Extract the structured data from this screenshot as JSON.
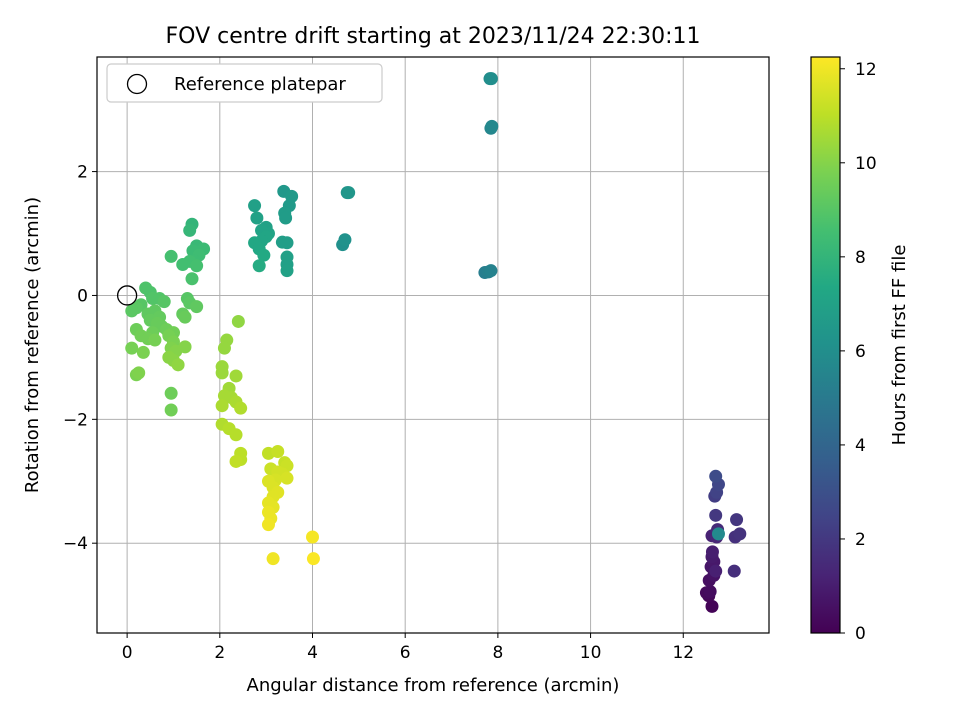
{
  "chart_data": {
    "type": "scatter",
    "title": "FOV centre drift starting at 2023/11/24 22:30:11",
    "xlabel": "Angular distance from reference (arcmin)",
    "ylabel": "Rotation from reference (arcmin)",
    "xlim": [
      -0.65,
      13.85
    ],
    "ylim": [
      -5.45,
      3.85
    ],
    "xticks": [
      0,
      2,
      4,
      6,
      8,
      10,
      12
    ],
    "yticks": [
      -4,
      -2,
      0,
      2
    ],
    "grid": true,
    "legend": {
      "position": "upper left",
      "entries": [
        "Reference platepar"
      ]
    },
    "reference_point": {
      "x": 0,
      "y": 0
    },
    "colorbar": {
      "label": "Hours from first FF file",
      "colormap": "viridis",
      "range": [
        0,
        12.25
      ],
      "ticks": [
        0,
        2,
        4,
        6,
        8,
        10,
        12
      ]
    },
    "points": [
      {
        "x": 12.62,
        "y": -5.02,
        "h": 0.1
      },
      {
        "x": 12.55,
        "y": -4.85,
        "h": 0.2
      },
      {
        "x": 12.5,
        "y": -4.8,
        "h": 0.3
      },
      {
        "x": 12.58,
        "y": -4.78,
        "h": 0.4
      },
      {
        "x": 12.56,
        "y": -4.6,
        "h": 0.5
      },
      {
        "x": 12.66,
        "y": -4.52,
        "h": 0.6
      },
      {
        "x": 12.6,
        "y": -4.38,
        "h": 0.7
      },
      {
        "x": 12.66,
        "y": -4.3,
        "h": 0.8
      },
      {
        "x": 12.62,
        "y": -4.22,
        "h": 0.9
      },
      {
        "x": 12.63,
        "y": -4.14,
        "h": 1.0
      },
      {
        "x": 12.7,
        "y": -4.45,
        "h": 1.1
      },
      {
        "x": 12.62,
        "y": -3.88,
        "h": 1.2
      },
      {
        "x": 12.72,
        "y": -3.9,
        "h": 1.3
      },
      {
        "x": 12.74,
        "y": -3.78,
        "h": 1.5
      },
      {
        "x": 13.1,
        "y": -4.45,
        "h": 1.6
      },
      {
        "x": 13.12,
        "y": -3.9,
        "h": 1.7
      },
      {
        "x": 13.22,
        "y": -3.85,
        "h": 1.8
      },
      {
        "x": 13.15,
        "y": -3.62,
        "h": 1.9
      },
      {
        "x": 12.7,
        "y": -3.55,
        "h": 2.0
      },
      {
        "x": 12.68,
        "y": -3.24,
        "h": 2.2
      },
      {
        "x": 12.72,
        "y": -3.18,
        "h": 2.4
      },
      {
        "x": 12.76,
        "y": -3.05,
        "h": 2.6
      },
      {
        "x": 12.7,
        "y": -2.92,
        "h": 2.8
      },
      {
        "x": 12.76,
        "y": -3.85,
        "h": 5.8
      },
      {
        "x": 7.72,
        "y": 0.37,
        "h": 5.2
      },
      {
        "x": 7.8,
        "y": 0.38,
        "h": 5.3
      },
      {
        "x": 7.85,
        "y": 0.4,
        "h": 5.4
      },
      {
        "x": 7.85,
        "y": 2.7,
        "h": 5.6
      },
      {
        "x": 7.87,
        "y": 2.73,
        "h": 5.7
      },
      {
        "x": 7.83,
        "y": 3.5,
        "h": 5.9
      },
      {
        "x": 7.86,
        "y": 3.5,
        "h": 6.0
      },
      {
        "x": 4.65,
        "y": 0.82,
        "h": 6.1
      },
      {
        "x": 4.7,
        "y": 0.9,
        "h": 6.2
      },
      {
        "x": 4.75,
        "y": 1.66,
        "h": 6.3
      },
      {
        "x": 4.78,
        "y": 1.66,
        "h": 6.4
      },
      {
        "x": 3.38,
        "y": 1.68,
        "h": 6.5
      },
      {
        "x": 3.55,
        "y": 1.6,
        "h": 6.6
      },
      {
        "x": 3.5,
        "y": 1.45,
        "h": 6.6
      },
      {
        "x": 3.4,
        "y": 1.33,
        "h": 6.7
      },
      {
        "x": 3.42,
        "y": 1.25,
        "h": 6.7
      },
      {
        "x": 3.35,
        "y": 0.86,
        "h": 6.8
      },
      {
        "x": 3.45,
        "y": 0.85,
        "h": 6.8
      },
      {
        "x": 3.45,
        "y": 0.62,
        "h": 6.9
      },
      {
        "x": 3.45,
        "y": 0.5,
        "h": 6.9
      },
      {
        "x": 3.45,
        "y": 0.4,
        "h": 7.0
      },
      {
        "x": 2.75,
        "y": 1.45,
        "h": 6.9
      },
      {
        "x": 2.8,
        "y": 1.25,
        "h": 7.0
      },
      {
        "x": 3.0,
        "y": 1.1,
        "h": 7.0
      },
      {
        "x": 3.05,
        "y": 1.0,
        "h": 7.1
      },
      {
        "x": 2.9,
        "y": 1.05,
        "h": 7.1
      },
      {
        "x": 3.0,
        "y": 0.95,
        "h": 7.2
      },
      {
        "x": 2.9,
        "y": 0.88,
        "h": 7.2
      },
      {
        "x": 2.75,
        "y": 0.85,
        "h": 7.3
      },
      {
        "x": 2.85,
        "y": 0.75,
        "h": 7.3
      },
      {
        "x": 2.95,
        "y": 0.65,
        "h": 7.4
      },
      {
        "x": 2.85,
        "y": 0.48,
        "h": 7.5
      },
      {
        "x": 1.4,
        "y": 1.15,
        "h": 8.0
      },
      {
        "x": 1.35,
        "y": 1.05,
        "h": 8.1
      },
      {
        "x": 1.5,
        "y": 0.8,
        "h": 8.2
      },
      {
        "x": 1.65,
        "y": 0.75,
        "h": 8.3
      },
      {
        "x": 1.42,
        "y": 0.72,
        "h": 8.3
      },
      {
        "x": 1.55,
        "y": 0.65,
        "h": 8.4
      },
      {
        "x": 1.45,
        "y": 0.55,
        "h": 8.4
      },
      {
        "x": 1.35,
        "y": 0.55,
        "h": 8.5
      },
      {
        "x": 1.2,
        "y": 0.5,
        "h": 8.5
      },
      {
        "x": 1.5,
        "y": 0.48,
        "h": 8.6
      },
      {
        "x": 0.95,
        "y": 0.63,
        "h": 8.6
      },
      {
        "x": 1.4,
        "y": 0.27,
        "h": 8.7
      },
      {
        "x": 0.4,
        "y": 0.12,
        "h": 8.8
      },
      {
        "x": 0.5,
        "y": 0.05,
        "h": 8.8
      },
      {
        "x": 0.55,
        "y": -0.05,
        "h": 8.9
      },
      {
        "x": 0.7,
        "y": -0.05,
        "h": 8.9
      },
      {
        "x": 0.8,
        "y": -0.1,
        "h": 9.0
      },
      {
        "x": 0.3,
        "y": -0.15,
        "h": 9.0
      },
      {
        "x": 0.2,
        "y": -0.2,
        "h": 9.1
      },
      {
        "x": 0.1,
        "y": -0.25,
        "h": 9.1
      },
      {
        "x": 0.45,
        "y": -0.3,
        "h": 9.2
      },
      {
        "x": 0.6,
        "y": -0.25,
        "h": 9.2
      },
      {
        "x": 0.7,
        "y": -0.35,
        "h": 9.3
      },
      {
        "x": 0.5,
        "y": -0.4,
        "h": 9.3
      },
      {
        "x": 0.65,
        "y": -0.45,
        "h": 9.4
      },
      {
        "x": 0.75,
        "y": -0.5,
        "h": 9.4
      },
      {
        "x": 0.2,
        "y": -0.55,
        "h": 9.5
      },
      {
        "x": 0.55,
        "y": -0.6,
        "h": 9.5
      },
      {
        "x": 0.3,
        "y": -0.65,
        "h": 9.6
      },
      {
        "x": 0.45,
        "y": -0.7,
        "h": 9.6
      },
      {
        "x": 0.6,
        "y": -0.72,
        "h": 9.7
      },
      {
        "x": 0.1,
        "y": -0.85,
        "h": 9.7
      },
      {
        "x": 0.35,
        "y": -0.92,
        "h": 9.8
      },
      {
        "x": 0.2,
        "y": -1.28,
        "h": 9.8
      },
      {
        "x": 0.25,
        "y": -1.25,
        "h": 9.9
      },
      {
        "x": 1.3,
        "y": -0.05,
        "h": 9.0
      },
      {
        "x": 1.35,
        "y": -0.12,
        "h": 9.1
      },
      {
        "x": 1.5,
        "y": -0.18,
        "h": 9.2
      },
      {
        "x": 1.2,
        "y": -0.3,
        "h": 9.3
      },
      {
        "x": 1.25,
        "y": -0.35,
        "h": 9.4
      },
      {
        "x": 0.85,
        "y": -0.55,
        "h": 9.5
      },
      {
        "x": 1.0,
        "y": -0.6,
        "h": 9.6
      },
      {
        "x": 0.9,
        "y": -0.65,
        "h": 9.7
      },
      {
        "x": 1.0,
        "y": -0.75,
        "h": 9.8
      },
      {
        "x": 0.95,
        "y": -0.85,
        "h": 9.9
      },
      {
        "x": 1.05,
        "y": -0.9,
        "h": 10.0
      },
      {
        "x": 1.25,
        "y": -0.83,
        "h": 10.0
      },
      {
        "x": 0.9,
        "y": -1.0,
        "h": 10.1
      },
      {
        "x": 1.0,
        "y": -1.05,
        "h": 10.1
      },
      {
        "x": 1.1,
        "y": -1.12,
        "h": 10.2
      },
      {
        "x": 0.95,
        "y": -1.58,
        "h": 9.5
      },
      {
        "x": 0.95,
        "y": -1.85,
        "h": 9.6
      },
      {
        "x": 2.4,
        "y": -0.42,
        "h": 10.2
      },
      {
        "x": 2.15,
        "y": -0.72,
        "h": 10.3
      },
      {
        "x": 2.1,
        "y": -0.85,
        "h": 10.3
      },
      {
        "x": 2.05,
        "y": -1.15,
        "h": 10.4
      },
      {
        "x": 2.05,
        "y": -1.25,
        "h": 10.4
      },
      {
        "x": 2.35,
        "y": -1.3,
        "h": 10.5
      },
      {
        "x": 2.2,
        "y": -1.5,
        "h": 10.5
      },
      {
        "x": 2.1,
        "y": -1.62,
        "h": 10.6
      },
      {
        "x": 2.25,
        "y": -1.65,
        "h": 10.6
      },
      {
        "x": 2.35,
        "y": -1.72,
        "h": 10.7
      },
      {
        "x": 2.05,
        "y": -1.78,
        "h": 10.7
      },
      {
        "x": 2.45,
        "y": -1.82,
        "h": 10.8
      },
      {
        "x": 2.05,
        "y": -2.08,
        "h": 10.8
      },
      {
        "x": 2.2,
        "y": -2.15,
        "h": 10.9
      },
      {
        "x": 2.35,
        "y": -2.25,
        "h": 10.9
      },
      {
        "x": 2.45,
        "y": -2.55,
        "h": 11.0
      },
      {
        "x": 2.45,
        "y": -2.65,
        "h": 11.0
      },
      {
        "x": 2.35,
        "y": -2.68,
        "h": 11.1
      },
      {
        "x": 3.05,
        "y": -2.55,
        "h": 11.1
      },
      {
        "x": 3.25,
        "y": -2.52,
        "h": 11.2
      },
      {
        "x": 3.4,
        "y": -2.7,
        "h": 11.2
      },
      {
        "x": 3.45,
        "y": -2.75,
        "h": 11.3
      },
      {
        "x": 3.1,
        "y": -2.8,
        "h": 11.3
      },
      {
        "x": 3.25,
        "y": -2.85,
        "h": 11.4
      },
      {
        "x": 3.35,
        "y": -2.88,
        "h": 11.4
      },
      {
        "x": 3.45,
        "y": -2.95,
        "h": 11.5
      },
      {
        "x": 3.2,
        "y": -2.98,
        "h": 11.5
      },
      {
        "x": 3.05,
        "y": -3.0,
        "h": 11.6
      },
      {
        "x": 3.15,
        "y": -3.1,
        "h": 11.6
      },
      {
        "x": 3.25,
        "y": -3.18,
        "h": 11.7
      },
      {
        "x": 3.15,
        "y": -3.25,
        "h": 11.7
      },
      {
        "x": 3.05,
        "y": -3.35,
        "h": 11.8
      },
      {
        "x": 3.15,
        "y": -3.42,
        "h": 11.8
      },
      {
        "x": 3.05,
        "y": -3.5,
        "h": 11.9
      },
      {
        "x": 3.1,
        "y": -3.6,
        "h": 11.9
      },
      {
        "x": 3.05,
        "y": -3.7,
        "h": 12.0
      },
      {
        "x": 3.15,
        "y": -4.25,
        "h": 12.0
      },
      {
        "x": 4.0,
        "y": -3.9,
        "h": 12.1
      },
      {
        "x": 4.02,
        "y": -4.25,
        "h": 12.2
      }
    ]
  }
}
